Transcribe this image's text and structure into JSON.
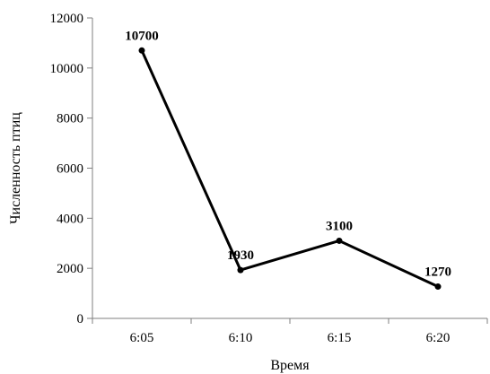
{
  "chart_data": {
    "type": "line",
    "title": "",
    "xlabel": "Время",
    "ylabel": "Численность птиц",
    "categories": [
      "6:05",
      "6:10",
      "6:15",
      "6:20"
    ],
    "series": [
      {
        "values": [
          10700,
          1930,
          3100,
          1270
        ],
        "labels": [
          "10700",
          "1930",
          "3100",
          "1270"
        ],
        "color": "#000000"
      }
    ],
    "yticks": [
      "0",
      "2000",
      "4000",
      "6000",
      "8000",
      "10000",
      "12000"
    ],
    "ylim": [
      0,
      12000
    ],
    "grid": false,
    "legend": "none"
  }
}
